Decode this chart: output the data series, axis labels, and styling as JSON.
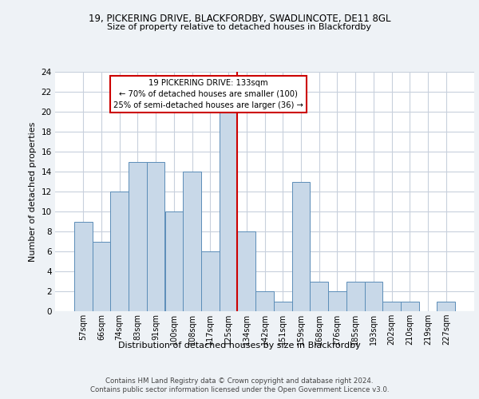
{
  "title1": "19, PICKERING DRIVE, BLACKFORDBY, SWADLINCOTE, DE11 8GL",
  "title2": "Size of property relative to detached houses in Blackfordby",
  "xlabel": "Distribution of detached houses by size in Blackfordby",
  "ylabel": "Number of detached properties",
  "bins": [
    "57sqm",
    "66sqm",
    "74sqm",
    "83sqm",
    "91sqm",
    "100sqm",
    "108sqm",
    "117sqm",
    "125sqm",
    "134sqm",
    "142sqm",
    "151sqm",
    "159sqm",
    "168sqm",
    "176sqm",
    "185sqm",
    "193sqm",
    "202sqm",
    "210sqm",
    "219sqm",
    "227sqm"
  ],
  "values": [
    9,
    7,
    12,
    15,
    15,
    10,
    14,
    6,
    20,
    8,
    2,
    1,
    13,
    3,
    2,
    3,
    3,
    1,
    1,
    0,
    1
  ],
  "bar_color": "#c8d8e8",
  "bar_edge_color": "#5b8db8",
  "vline_x_index": 8,
  "property_line_label": "19 PICKERING DRIVE: 133sqm",
  "annotation_line1": "← 70% of detached houses are smaller (100)",
  "annotation_line2": "25% of semi-detached houses are larger (36) →",
  "annotation_box_color": "#ffffff",
  "annotation_box_edge_color": "#cc0000",
  "vline_color": "#cc0000",
  "ylim": [
    0,
    24
  ],
  "yticks": [
    0,
    2,
    4,
    6,
    8,
    10,
    12,
    14,
    16,
    18,
    20,
    22,
    24
  ],
  "footer1": "Contains HM Land Registry data © Crown copyright and database right 2024.",
  "footer2": "Contains public sector information licensed under the Open Government Licence v3.0.",
  "bg_color": "#eef2f6",
  "plot_bg_color": "#ffffff",
  "grid_color": "#c8d0dc"
}
